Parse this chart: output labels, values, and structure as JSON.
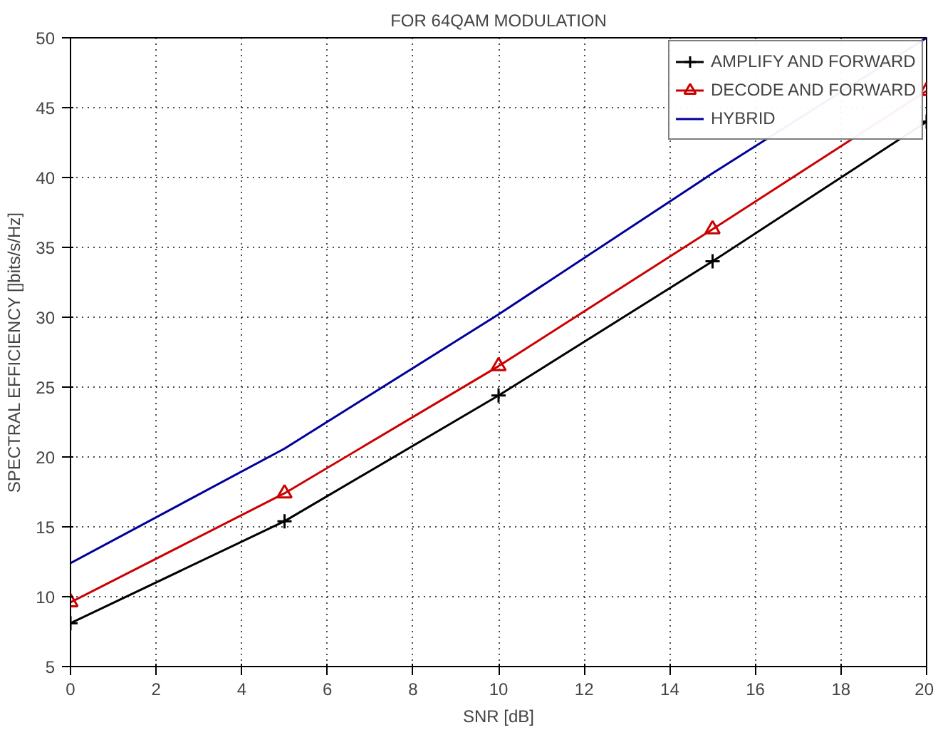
{
  "chart_data": {
    "type": "line",
    "title": "FOR 64QAM MODULATION",
    "xlabel": "SNR [dB]",
    "ylabel": "SPECTRAL EFFICIENCY []bits/s/Hz]",
    "x": [
      0,
      5,
      10,
      15,
      20
    ],
    "series": [
      {
        "name": "AMPLIFY AND FORWARD",
        "color": "#000000",
        "marker": "cross",
        "values": [
          8.1,
          15.4,
          24.4,
          34.0,
          44.0
        ]
      },
      {
        "name": "DECODE AND FORWARD",
        "color": "#cc0000",
        "marker": "triangle",
        "values": [
          9.6,
          17.4,
          26.5,
          36.3,
          46.2
        ]
      },
      {
        "name": "HYBRID",
        "color": "#000099",
        "marker": "none",
        "values": [
          12.4,
          20.6,
          30.2,
          40.3,
          50.0
        ]
      }
    ],
    "xlim": [
      0,
      20
    ],
    "ylim": [
      5,
      50
    ],
    "xticks": [
      0,
      2,
      4,
      6,
      8,
      10,
      12,
      14,
      16,
      18,
      20
    ],
    "yticks": [
      5,
      10,
      15,
      20,
      25,
      30,
      35,
      40,
      45,
      50
    ],
    "grid": true,
    "legend": "top right",
    "line_style": "solid"
  }
}
